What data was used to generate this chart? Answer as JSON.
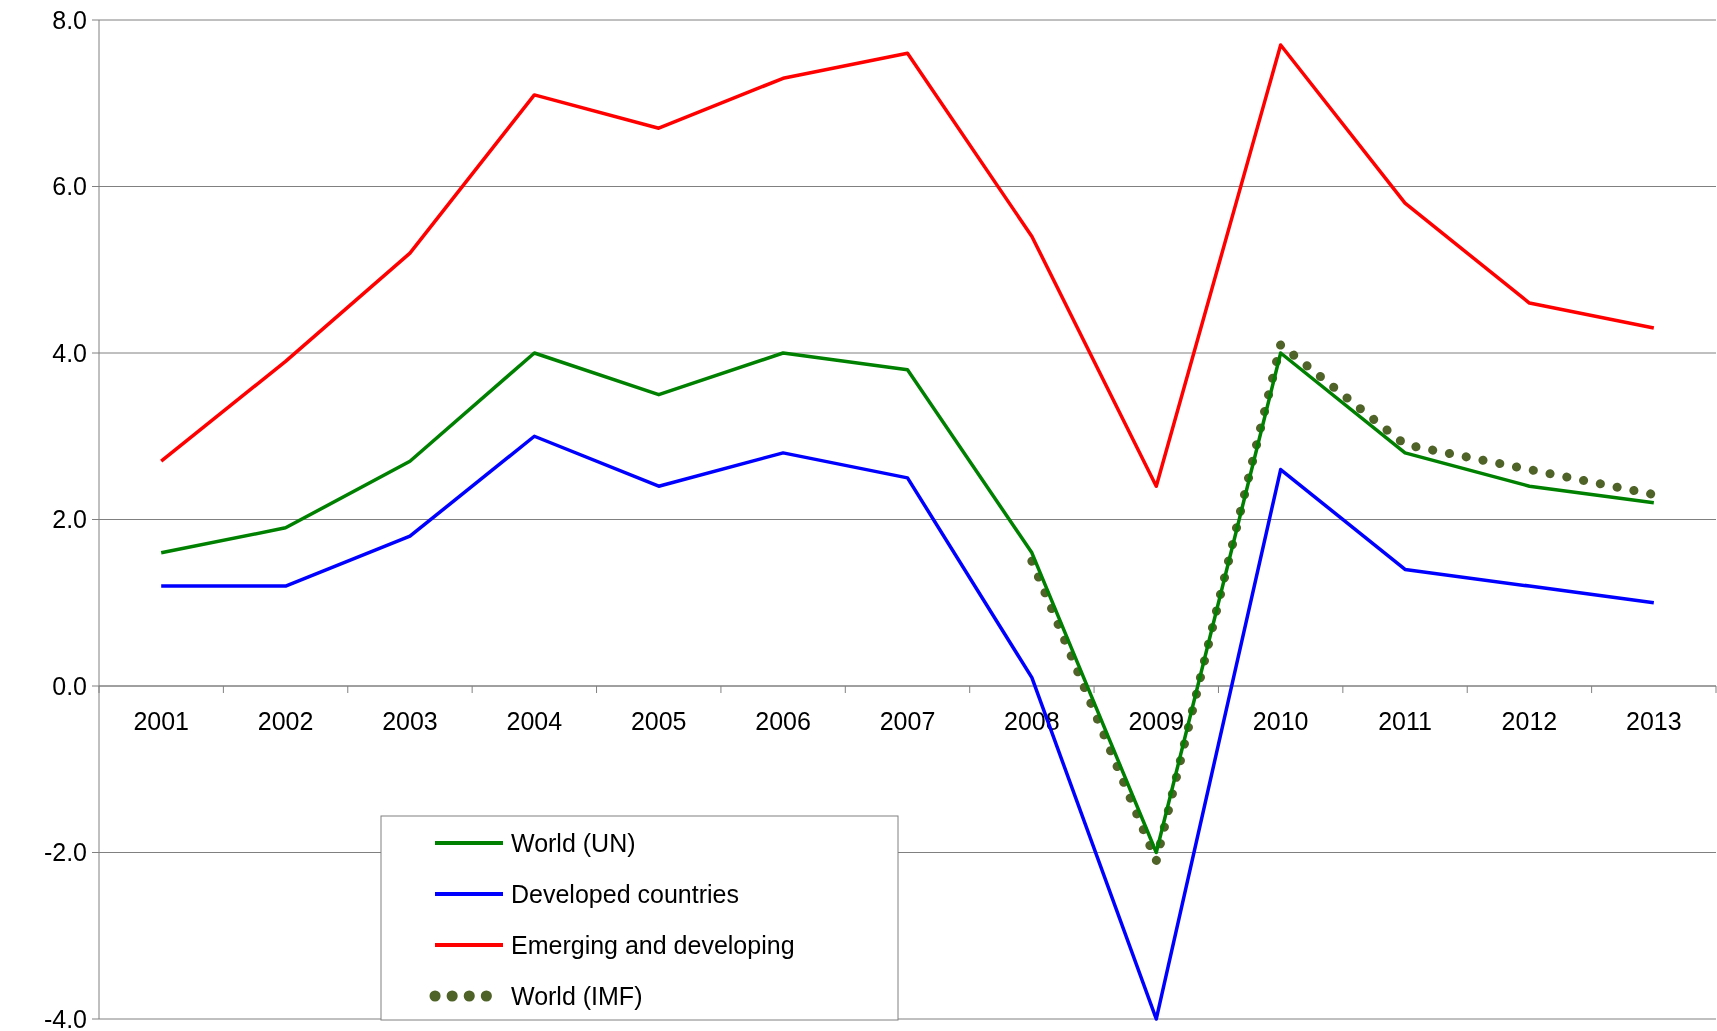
{
  "chart_data": {
    "type": "line",
    "categories": [
      "2001",
      "2002",
      "2003",
      "2004",
      "2005",
      "2006",
      "2007",
      "2008",
      "2009",
      "2010",
      "2011",
      "2012",
      "2013"
    ],
    "series": [
      {
        "name": "World (UN)",
        "color": "#008000",
        "values": [
          1.6,
          1.9,
          2.7,
          4.0,
          3.5,
          4.0,
          3.8,
          1.6,
          -2.0,
          4.0,
          2.8,
          2.4,
          2.2
        ]
      },
      {
        "name": "Developed countries",
        "color": "#0000ff",
        "values": [
          1.2,
          1.2,
          1.8,
          3.0,
          2.4,
          2.8,
          2.5,
          0.1,
          -4.0,
          2.6,
          1.4,
          1.2,
          1.0
        ]
      },
      {
        "name": "Emerging and developing",
        "color": "#ff0000",
        "values": [
          2.7,
          3.9,
          5.2,
          7.1,
          6.7,
          7.3,
          7.6,
          5.4,
          2.4,
          7.7,
          5.8,
          4.6,
          4.3
        ]
      },
      {
        "name": "World (IMF)",
        "color": "#4f6228",
        "line_style": "dotted",
        "values": [
          null,
          null,
          null,
          null,
          null,
          null,
          null,
          1.5,
          -2.1,
          4.1,
          2.9,
          2.6,
          2.3
        ]
      }
    ],
    "ylim": [
      -4,
      8
    ],
    "yticks": [
      {
        "value": -4,
        "label": "-4.0"
      },
      {
        "value": -2,
        "label": "-2.0"
      },
      {
        "value": 0,
        "label": "0.0"
      },
      {
        "value": 2,
        "label": "2.0"
      },
      {
        "value": 4,
        "label": "4.0"
      },
      {
        "value": 6,
        "label": "6.0"
      },
      {
        "value": 8,
        "label": "8.0"
      }
    ],
    "grid": "y",
    "legend": "bottom left",
    "line_style": "solid",
    "marker": "none"
  }
}
